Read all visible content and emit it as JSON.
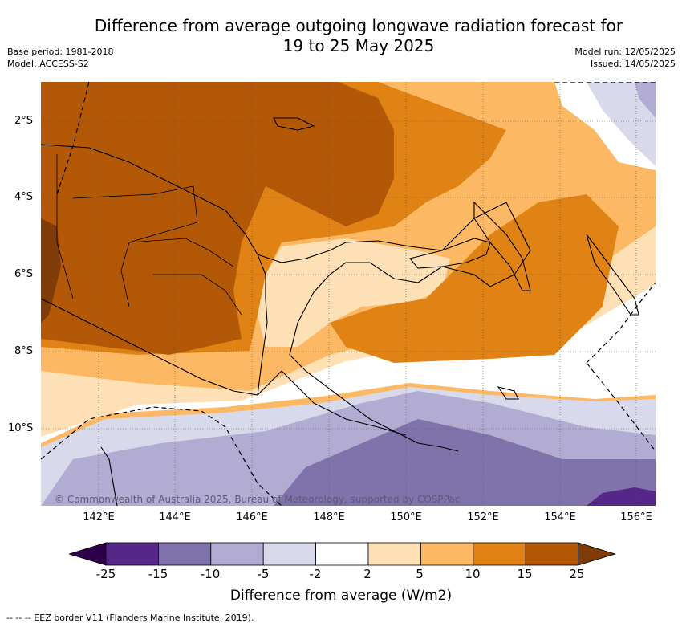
{
  "title_line1": "Difference from average outgoing longwave radiation forecast for",
  "title_line2": "19 to 25 May 2025",
  "meta": {
    "base_period": "Base period: 1981-2018",
    "model": "Model: ACCESS-S2",
    "model_run": "Model run: 12/05/2025",
    "issued": "Issued: 14/05/2025"
  },
  "map": {
    "lat_labels": [
      "2°S",
      "4°S",
      "6°S",
      "8°S",
      "10°S"
    ],
    "lon_labels": [
      "142°E",
      "144°E",
      "146°E",
      "148°E",
      "150°E",
      "152°E",
      "154°E",
      "156°E"
    ],
    "copyright": "© Commonwealth of Australia 2025, Bureau of Meteorology, supported by COSPPac"
  },
  "colorbar": {
    "colors": [
      "#2d004b",
      "#542788",
      "#8073ac",
      "#b2abd2",
      "#d8daeb",
      "#ffffff",
      "#fee0b6",
      "#fdb863",
      "#e08214",
      "#b35806",
      "#7f3b08"
    ],
    "ticks": [
      "-25",
      "-15",
      "-10",
      "-5",
      "-2",
      "2",
      "5",
      "10",
      "15",
      "25"
    ],
    "label": "Difference from average (W/m2)"
  },
  "footer": "--  --  -- EEZ border V11 (Flanders Marine Institute, 2019)."
}
